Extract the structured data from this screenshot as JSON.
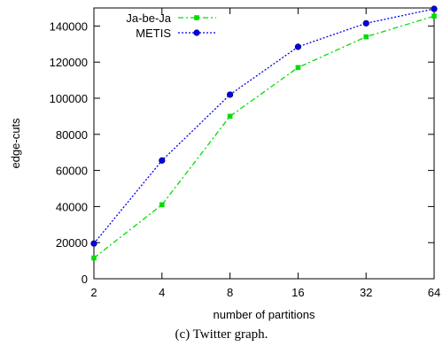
{
  "chart_data": {
    "type": "line",
    "title": "",
    "xlabel": "number of partitions",
    "ylabel": "edge-cuts",
    "x": [
      2,
      4,
      8,
      16,
      32,
      64
    ],
    "x_scale": "log2",
    "ylim": [
      0,
      150000
    ],
    "yticks": [
      0,
      20000,
      40000,
      60000,
      80000,
      100000,
      120000,
      140000
    ],
    "legend_position": "top-left",
    "grid": false,
    "series": [
      {
        "name": "Ja-be-Ja",
        "values": [
          11500,
          41000,
          90000,
          117000,
          134000,
          145500
        ],
        "color": "#00dd00",
        "marker": "square",
        "line_style": "dash-dot"
      },
      {
        "name": "METIS",
        "values": [
          19500,
          65500,
          102000,
          128500,
          141500,
          149500
        ],
        "color": "#0000ee",
        "marker": "circle",
        "line_style": "dotted"
      }
    ]
  },
  "caption": "(c) Twitter graph."
}
